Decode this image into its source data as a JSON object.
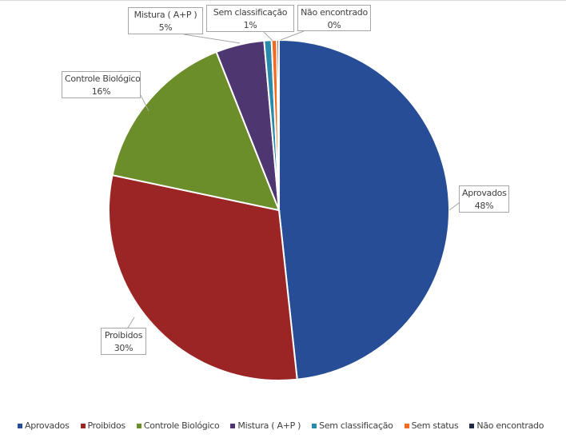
{
  "chart_data": {
    "type": "pie",
    "title": "",
    "categories": [
      "Aprovados",
      "Proibidos",
      "Controle Biológico",
      "Mistura ( A+P )",
      "Sem classificação",
      "Sem status",
      "Não encontrado"
    ],
    "values": [
      48.3,
      30.0,
      15.7,
      4.6,
      0.7,
      0.5,
      0.2
    ],
    "colors": [
      "#264D96",
      "#9B2524",
      "#6B8E2A",
      "#4E3670",
      "#2A8AAB",
      "#F26B21",
      "#1F2A44"
    ],
    "data_labels": [
      {
        "name": "Aprovados",
        "pct": "48%"
      },
      {
        "name": "Proibidos",
        "pct": "30%"
      },
      {
        "name": "Controle Biológico",
        "pct": "16%"
      },
      {
        "name": "Mistura ( A+P )",
        "pct": "5%"
      },
      {
        "name": "Sem classificação",
        "pct": "1%"
      },
      {
        "name": "Sem status",
        "pct": "0%"
      },
      {
        "name": "Não encontrado",
        "pct": "0%"
      }
    ],
    "legend_position": "bottom",
    "start_angle_deg": 0,
    "direction": "clockwise"
  }
}
